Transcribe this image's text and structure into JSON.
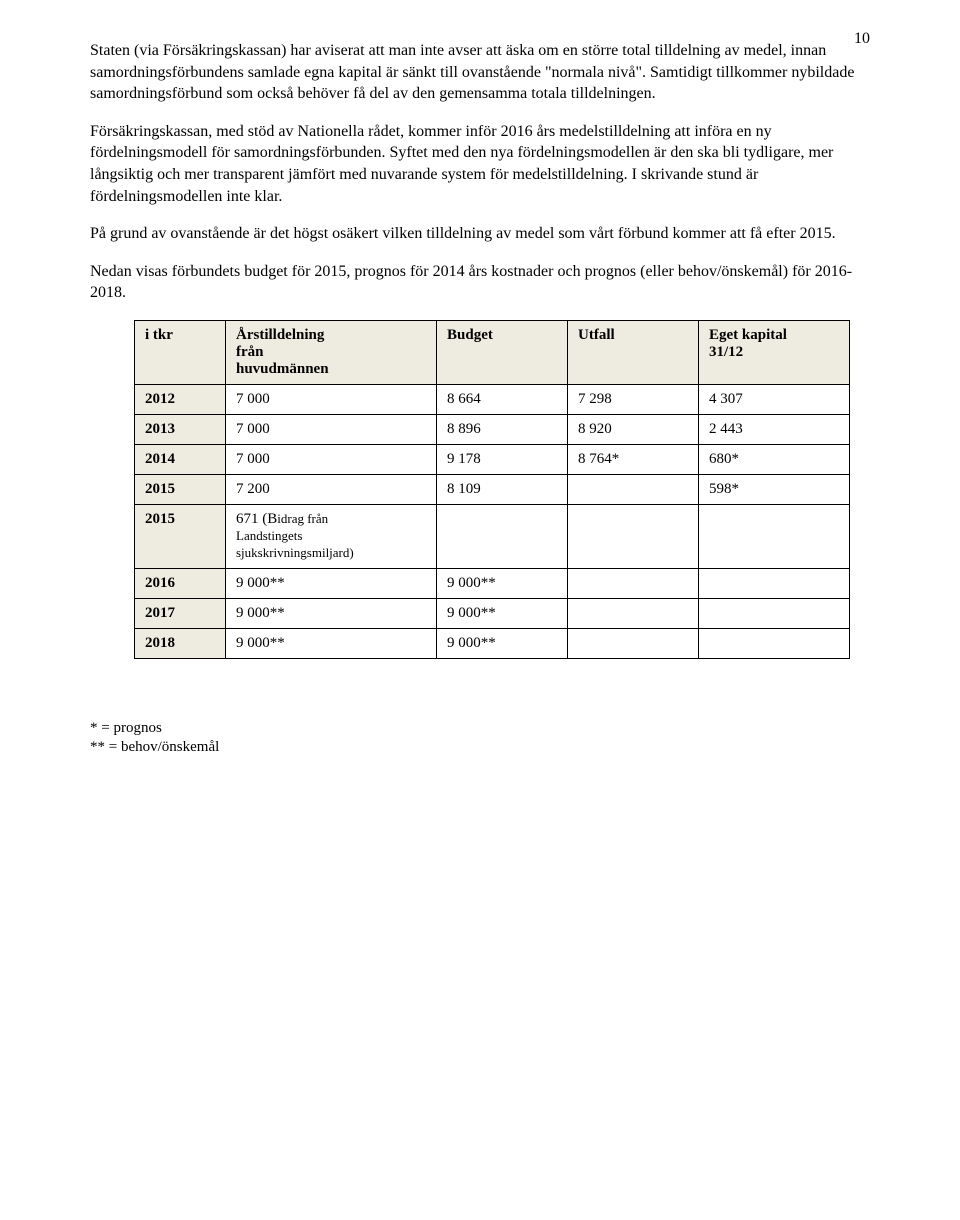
{
  "page_number": "10",
  "paragraphs": {
    "p1": "Staten (via Försäkringskassan) har aviserat att man inte avser att äska om en större total tilldelning av medel, innan samordningsförbundens samlade egna kapital är sänkt till ovanstående \"normala nivå\". Samtidigt tillkommer nybildade samordningsförbund som också behöver få del av den gemensamma totala tilldelningen.",
    "p2": "Försäkringskassan, med stöd av Nationella rådet, kommer inför 2016 års medelstilldelning att införa en ny fördelningsmodell för samordningsförbunden. Syftet med den nya fördelningsmodellen är den ska bli tydligare, mer långsiktig och mer transparent jämfört med nuvarande system för medelstilldelning. I skrivande stund är fördelningsmodellen inte klar.",
    "p3": "På grund av ovanstående är det högst osäkert vilken tilldelning av medel som vårt förbund kommer att få efter 2015.",
    "p4": "Nedan visas förbundets budget för 2015, prognos för 2014 års kostnader och prognos (eller behov/önskemål) för 2016-2018."
  },
  "table": {
    "headers": {
      "h0": "i tkr",
      "h1_line1": "Årstilldelning",
      "h1_line2": "från",
      "h1_line3": "huvudmännen",
      "h2": "Budget",
      "h3": "Utfall",
      "h4_line1": "Eget kapital",
      "h4_line2": "31/12"
    },
    "rows": {
      "r0": {
        "year": "2012",
        "alloc": "7 000",
        "budget": "8 664",
        "utfall": "7 298",
        "eget": "4 307"
      },
      "r1": {
        "year": "2013",
        "alloc": "7 000",
        "budget": "8 896",
        "utfall": "8 920",
        "eget": "2 443"
      },
      "r2": {
        "year": "2014",
        "alloc": "7 000",
        "budget": "9 178",
        "utfall": "8 764*",
        "eget": "680*"
      },
      "r3": {
        "year": "2015",
        "alloc": "7 200",
        "budget": "8 109",
        "utfall": "",
        "eget": "598*"
      },
      "r4": {
        "year": "2015",
        "alloc_main": "671 (B",
        "alloc_sub1": "idrag från",
        "alloc_sub2": "Landstingets",
        "alloc_sub3": "sjukskrivningsmiljard)",
        "budget": "",
        "utfall": "",
        "eget": ""
      },
      "r5": {
        "year": "2016",
        "alloc": "9 000**",
        "budget": "9 000**",
        "utfall": "",
        "eget": ""
      },
      "r6": {
        "year": "2017",
        "alloc": "9 000**",
        "budget": "9 000**",
        "utfall": "",
        "eget": ""
      },
      "r7": {
        "year": "2018",
        "alloc": "9 000**",
        "budget": "9 000**",
        "utfall": "",
        "eget": ""
      }
    }
  },
  "footnotes": {
    "f1": "* = prognos",
    "f2": "** = behov/önskemål"
  }
}
